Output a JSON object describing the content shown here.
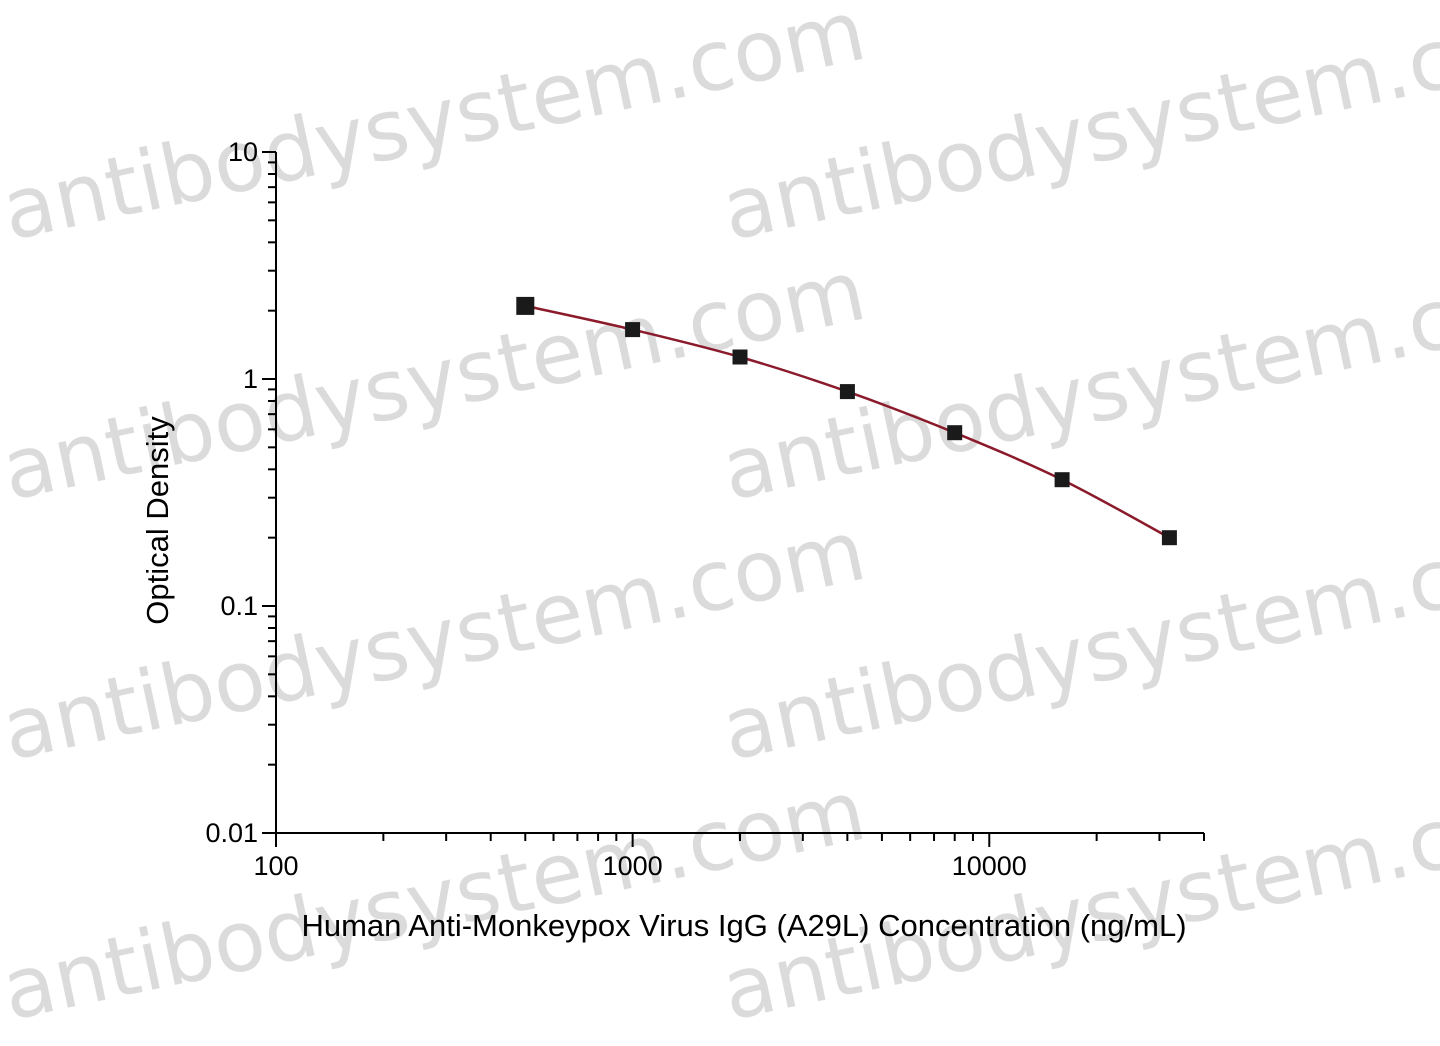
{
  "chart_data": {
    "type": "scatter",
    "xlabel": "Human Anti-Monkeypox Virus IgG (A29L) Concentration (ng/mL)",
    "ylabel": "Optical Density",
    "x_scale": "log",
    "y_scale": "log",
    "xlim": [
      100,
      40000
    ],
    "ylim": [
      0.01,
      10
    ],
    "x_ticks": [
      {
        "value": 100,
        "label": "100"
      },
      {
        "value": 1000,
        "label": "1000"
      },
      {
        "value": 10000,
        "label": "10000"
      }
    ],
    "y_ticks": [
      {
        "value": 0.01,
        "label": "0.01"
      },
      {
        "value": 0.1,
        "label": "0.1"
      },
      {
        "value": 1,
        "label": "1"
      },
      {
        "value": 10,
        "label": "10"
      }
    ],
    "grid": false,
    "series": [
      {
        "marker": "square",
        "color": "#1a1a1a",
        "line_color": "#8b1a2b",
        "x": [
          500,
          1000,
          2000,
          4000,
          8000,
          16000,
          32000
        ],
        "y": [
          2.1,
          1.65,
          1.25,
          0.88,
          0.58,
          0.36,
          0.2
        ]
      }
    ]
  },
  "watermark": {
    "text": "antibodysystem.com",
    "color": "#bdbdbd"
  }
}
